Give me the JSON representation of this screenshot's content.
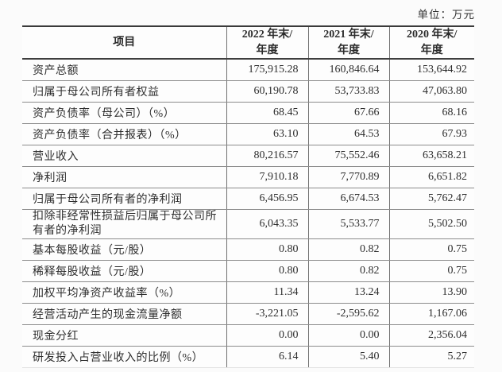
{
  "unit_label": "单位：万元",
  "colors": {
    "text": "#2e2e2e",
    "border_heavy": "#3a3a3a",
    "border_light": "#8c8c8c",
    "background": "#fbfbfb"
  },
  "table": {
    "header": {
      "item": "项目",
      "col_2022": "2022 年末/\n年度",
      "col_2021": "2021 年末/\n年度",
      "col_2020": "2020 年末/\n年度"
    },
    "rows": [
      {
        "label": "资产总额",
        "v2022": "175,915.28",
        "v2021": "160,846.64",
        "v2020": "153,644.92"
      },
      {
        "label": "归属于母公司所有者权益",
        "v2022": "60,190.78",
        "v2021": "53,733.83",
        "v2020": "47,063.80"
      },
      {
        "label": "资产负债率（母公司）（%）",
        "v2022": "68.45",
        "v2021": "67.66",
        "v2020": "68.16"
      },
      {
        "label": "资产负债率（合并报表）（%）",
        "v2022": "63.10",
        "v2021": "64.53",
        "v2020": "67.93"
      },
      {
        "label": "营业收入",
        "v2022": "80,216.57",
        "v2021": "75,552.46",
        "v2020": "63,658.21"
      },
      {
        "label": "净利润",
        "v2022": "7,910.18",
        "v2021": "7,770.89",
        "v2020": "6,651.82"
      },
      {
        "label": "归属于母公司所有者的净利润",
        "v2022": "6,456.95",
        "v2021": "6,674.53",
        "v2020": "5,762.47"
      },
      {
        "label": "扣除非经常性损益后归属于母公司所有者的净利润",
        "v2022": "6,043.35",
        "v2021": "5,533.77",
        "v2020": "5,502.50"
      },
      {
        "label": "基本每股收益（元/股）",
        "v2022": "0.80",
        "v2021": "0.82",
        "v2020": "0.75"
      },
      {
        "label": "稀释每股收益（元/股）",
        "v2022": "0.80",
        "v2021": "0.82",
        "v2020": "0.75"
      },
      {
        "label": "加权平均净资产收益率（%）",
        "v2022": "11.34",
        "v2021": "13.24",
        "v2020": "13.90"
      },
      {
        "label": "经营活动产生的现金流量净额",
        "v2022": "-3,221.05",
        "v2021": "-2,595.62",
        "v2020": "1,167.06"
      },
      {
        "label": "现金分红",
        "v2022": "0.00",
        "v2021": "0.00",
        "v2020": "2,356.04"
      },
      {
        "label": "研发投入占营业收入的比例（%）",
        "v2022": "6.14",
        "v2021": "5.40",
        "v2020": "5.27"
      }
    ]
  }
}
